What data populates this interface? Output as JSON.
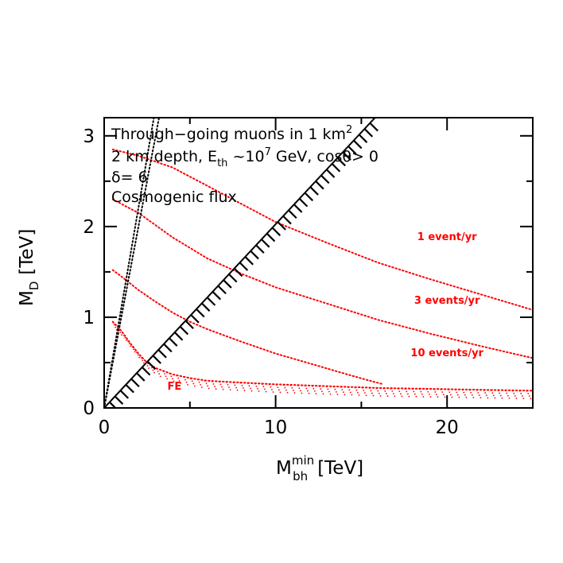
{
  "chart_data": {
    "type": "line",
    "xlabel": "M",
    "xlabel_sub": "bh",
    "xlabel_sup": "min",
    "xlabel_unit": "[TeV]",
    "ylabel": "M",
    "ylabel_sub": "D",
    "ylabel_unit": "[TeV]",
    "xlim": [
      0,
      25
    ],
    "ylim": [
      0,
      3.2
    ],
    "xticks": [
      0,
      10,
      20
    ],
    "yticks": [
      0,
      1,
      2,
      3
    ],
    "x_minor_step": 5,
    "y_minor_step": 0.5,
    "annotations": {
      "line1_a": "Through−going muons in 1 km",
      "line1_sup": "2",
      "line2_a": "2 km depth, E",
      "line2_sub": "th",
      "line2_b": " ~10",
      "line2_sup": "7",
      "line2_c": " GeV, cosθ> 0",
      "line3": "δ= 6",
      "line4": "Cosmogenic flux"
    },
    "colors": {
      "event_curves": "#ff0000",
      "boundaries": "#000000"
    },
    "series": [
      {
        "name": "1 event/yr",
        "style": "red-dotted",
        "x": [
          0.5,
          2,
          4,
          6,
          8,
          10,
          13,
          16,
          19,
          22,
          25
        ],
        "y": [
          2.85,
          2.78,
          2.65,
          2.45,
          2.25,
          2.05,
          1.82,
          1.6,
          1.42,
          1.25,
          1.08
        ]
      },
      {
        "name": "3 events/yr",
        "style": "red-dotted",
        "x": [
          0.5,
          2,
          4,
          6,
          8,
          10,
          13,
          16,
          19,
          22,
          25
        ],
        "y": [
          2.3,
          2.15,
          1.88,
          1.65,
          1.48,
          1.33,
          1.15,
          0.97,
          0.82,
          0.68,
          0.55
        ]
      },
      {
        "name": "10 events/yr",
        "style": "red-dotted",
        "x": [
          0.5,
          1,
          2,
          3,
          4,
          5,
          6,
          8,
          10,
          12,
          14,
          15.5,
          16.3
        ],
        "y": [
          1.52,
          1.45,
          1.3,
          1.17,
          1.05,
          0.95,
          0.87,
          0.73,
          0.6,
          0.49,
          0.38,
          0.3,
          0.26
        ]
      },
      {
        "name": "FE",
        "style": "red-dotted-hatched",
        "x": [
          0.5,
          1,
          1.5,
          2,
          2.5,
          3,
          4,
          5,
          6,
          8,
          10,
          13,
          16,
          19,
          22,
          25
        ],
        "y": [
          0.95,
          0.85,
          0.72,
          0.6,
          0.5,
          0.44,
          0.37,
          0.33,
          0.3,
          0.28,
          0.26,
          0.24,
          0.22,
          0.21,
          0.2,
          0.19
        ]
      },
      {
        "name": "M_D = M_bh^min",
        "style": "black-solid-hatched",
        "x": [
          0,
          15.8
        ],
        "y": [
          0,
          3.2
        ]
      },
      {
        "name": "boundary (dotted)",
        "style": "black-dotted",
        "x": [
          0,
          3.2
        ],
        "y": [
          0,
          3.2
        ]
      },
      {
        "name": "boundary (dotted) inner",
        "style": "black-dotted",
        "x": [
          0,
          2.9
        ],
        "y": [
          0,
          3.2
        ]
      }
    ],
    "labels": [
      {
        "text": "1 event/yr",
        "x": 20,
        "y": 1.85
      },
      {
        "text": "3 events/yr",
        "x": 20,
        "y": 1.15
      },
      {
        "text": "10 events/yr",
        "x": 20,
        "y": 0.57
      },
      {
        "text": "FE",
        "x": 4.1,
        "y": 0.2
      }
    ]
  }
}
